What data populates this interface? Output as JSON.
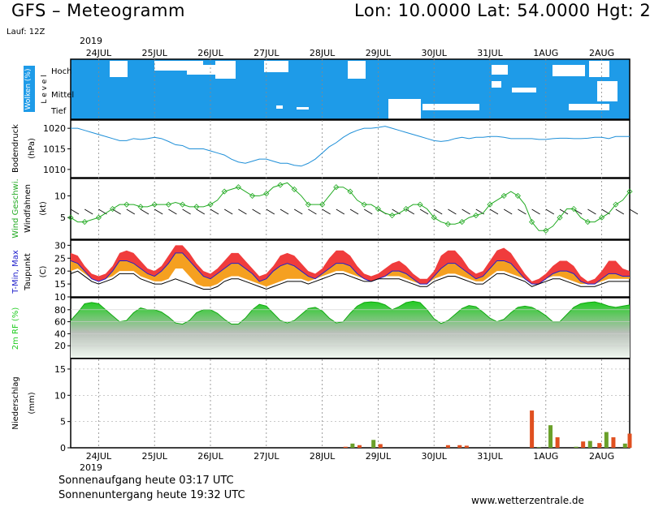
{
  "header": {
    "title": "GFS – Meteogramm",
    "coords": "Lon: 10.0000 Lat: 54.0000 Hgt: 2",
    "run": "Lauf: 12Z",
    "year": "2019"
  },
  "footer": {
    "sunrise": "Sonnenaufgang heute 03:17 UTC",
    "sunset": "Sonnenuntergang heute 19:32 UTC",
    "site": "www.wetterzentrale.de"
  },
  "colors": {
    "cloud_bg": "#1e9be8",
    "pressure": "#1e8fd8",
    "wind_line": "#22aa22",
    "tmax": "#f03c3c",
    "tmin": "#2020cc",
    "warm_fill": "#f5a020",
    "rh_fill": "#22cc22",
    "precip_green": "#6aa02a",
    "precip_red": "#e05020"
  },
  "chart_data": [
    {
      "type": "area",
      "panel": "clouds",
      "ylabel": "Wolken (%)",
      "ylabel2": "L e v e l",
      "levels": [
        "Hoch",
        "Mittel",
        "Tief"
      ],
      "x_labels": [
        "24JUL",
        "25JUL",
        "26JUL",
        "27JUL",
        "28JUL",
        "29JUL",
        "30JUL",
        "31JUL",
        "1AUG",
        "2AUG"
      ]
    },
    {
      "type": "line",
      "panel": "pressure",
      "ylabel": "Bodendruck",
      "unit": "(hPa)",
      "yticks": [
        1010,
        1015,
        1020
      ],
      "ylim": [
        1008,
        1022
      ],
      "x": [
        0,
        3,
        6,
        9,
        12,
        15,
        18,
        21,
        24,
        27,
        30,
        33,
        36,
        39,
        42,
        45,
        48,
        51,
        54,
        57,
        60,
        63,
        66,
        69,
        72,
        75,
        78,
        81,
        84,
        87,
        90,
        93,
        96,
        99,
        102,
        105,
        108,
        111,
        114,
        117,
        120,
        123,
        126,
        129,
        132,
        135,
        138,
        141,
        144,
        147,
        150,
        153,
        156,
        159,
        162,
        165,
        168,
        171,
        174,
        177,
        180,
        183,
        186,
        189,
        192,
        195,
        198,
        201,
        204,
        207,
        210,
        213,
        216,
        219,
        222,
        225,
        228,
        231,
        234,
        237,
        240
      ],
      "values": [
        1020,
        1020,
        1019.5,
        1019,
        1018.5,
        1018,
        1017.5,
        1017,
        1017,
        1017.5,
        1017.3,
        1017.5,
        1017.8,
        1017.5,
        1016.8,
        1016,
        1015.8,
        1015,
        1015,
        1015,
        1014.5,
        1014,
        1013.5,
        1012.5,
        1011.8,
        1011.5,
        1012,
        1012.5,
        1012.5,
        1012,
        1011.5,
        1011.5,
        1011,
        1010.8,
        1011.5,
        1012.5,
        1014,
        1015.5,
        1016.5,
        1017.8,
        1018.8,
        1019.5,
        1020,
        1020,
        1020.2,
        1020.5,
        1020,
        1019.5,
        1019,
        1018.5,
        1018,
        1017.5,
        1017,
        1016.8,
        1017,
        1017.5,
        1017.8,
        1017.5,
        1017.8,
        1017.8,
        1018,
        1018,
        1017.8,
        1017.5,
        1017.5,
        1017.5,
        1017.5,
        1017.3,
        1017.3,
        1017.5,
        1017.6,
        1017.6,
        1017.5,
        1017.5,
        1017.6,
        1017.8,
        1017.8,
        1017.5,
        1018,
        1018,
        1018
      ]
    },
    {
      "type": "line",
      "panel": "wind",
      "ylabel": "Wind Geschwi.",
      "ylabel2": "Windfahnen",
      "unit": "(kt)",
      "yticks": [
        5,
        10
      ],
      "ylim": [
        0,
        14
      ],
      "x": [
        0,
        3,
        6,
        9,
        12,
        15,
        18,
        21,
        24,
        27,
        30,
        33,
        36,
        39,
        42,
        45,
        48,
        51,
        54,
        57,
        60,
        63,
        66,
        69,
        72,
        75,
        78,
        81,
        84,
        87,
        90,
        93,
        96,
        99,
        102,
        105,
        108,
        111,
        114,
        117,
        120,
        123,
        126,
        129,
        132,
        135,
        138,
        141,
        144,
        147,
        150,
        153,
        156,
        159,
        162,
        165,
        168,
        171,
        174,
        177,
        180,
        183,
        186,
        189,
        192,
        195,
        198,
        201,
        204,
        207,
        210,
        213,
        216,
        219,
        222,
        225,
        228,
        231,
        234,
        237,
        240
      ],
      "values": [
        5,
        4,
        4,
        4.5,
        5,
        6,
        7,
        8,
        8,
        8,
        7.5,
        7.5,
        8,
        8,
        8,
        8.5,
        8,
        7.5,
        7.5,
        7.5,
        8,
        9,
        11,
        11.5,
        12,
        11,
        10,
        10,
        10.5,
        12,
        12.5,
        13,
        11.5,
        10,
        8,
        8,
        8,
        10,
        12,
        12,
        11,
        9,
        8,
        8,
        7,
        6,
        5.5,
        6,
        7,
        8,
        8,
        7,
        5,
        4,
        3.5,
        3.5,
        4,
        5,
        5.5,
        6,
        8,
        9,
        10,
        11,
        10,
        8,
        4,
        2,
        2,
        3,
        5,
        7,
        7,
        5,
        4,
        4,
        5,
        6,
        8,
        9,
        11
      ]
    },
    {
      "type": "line",
      "panel": "temperature",
      "ylabel": "T-Min, Max",
      "ylabel2": "Taupunkt",
      "unit": "(C)",
      "yticks": [
        10,
        15,
        20,
        25,
        30
      ],
      "ylim": [
        10,
        32
      ],
      "x": [
        0,
        3,
        6,
        9,
        12,
        15,
        18,
        21,
        24,
        27,
        30,
        33,
        36,
        39,
        42,
        45,
        48,
        51,
        54,
        57,
        60,
        63,
        66,
        69,
        72,
        75,
        78,
        81,
        84,
        87,
        90,
        93,
        96,
        99,
        102,
        105,
        108,
        111,
        114,
        117,
        120,
        123,
        126,
        129,
        132,
        135,
        138,
        141,
        144,
        147,
        150,
        153,
        156,
        159,
        162,
        165,
        168,
        171,
        174,
        177,
        180,
        183,
        186,
        189,
        192,
        195,
        198,
        201,
        204,
        207,
        210,
        213,
        216,
        219,
        222,
        225,
        228,
        231,
        234,
        237,
        240
      ],
      "series": [
        {
          "name": "Max",
          "values": [
            27,
            26,
            22,
            19,
            18,
            19,
            22,
            27,
            28,
            27,
            24,
            21,
            20,
            22,
            26,
            30,
            30,
            27,
            23,
            20,
            19,
            21,
            24,
            27,
            27,
            24,
            21,
            18,
            19,
            22,
            26,
            27,
            26,
            23,
            20,
            19,
            21,
            25,
            28,
            28,
            26,
            22,
            19,
            18,
            19,
            21,
            23,
            24,
            22,
            19,
            17,
            17,
            20,
            26,
            28,
            28,
            25,
            21,
            19,
            20,
            24,
            28,
            29,
            27,
            23,
            19,
            16,
            17,
            19,
            22,
            24,
            24,
            22,
            18,
            16,
            17,
            20,
            24,
            24,
            21,
            20
          ]
        },
        {
          "name": "Min",
          "values": [
            24,
            23,
            20,
            17,
            16,
            17,
            20,
            24,
            24,
            23,
            21,
            19,
            18,
            20,
            23,
            27,
            27,
            24,
            21,
            18,
            17,
            19,
            21,
            23,
            23,
            21,
            19,
            16,
            17,
            20,
            22,
            23,
            22,
            20,
            18,
            17,
            19,
            21,
            23,
            23,
            22,
            19,
            17,
            16,
            17,
            18,
            20,
            20,
            19,
            17,
            15,
            15,
            18,
            21,
            23,
            23,
            21,
            19,
            17,
            18,
            21,
            24,
            24,
            23,
            20,
            17,
            15,
            15,
            17,
            19,
            20,
            20,
            19,
            16,
            15,
            15,
            17,
            19,
            19,
            18,
            18
          ]
        },
        {
          "name": "Taupunkt",
          "values": [
            19,
            20,
            18,
            16,
            15,
            16,
            17,
            19,
            19,
            19,
            17,
            16,
            15,
            15,
            16,
            17,
            16,
            15,
            14,
            13,
            13,
            14,
            16,
            17,
            17,
            16,
            15,
            14,
            13,
            14,
            15,
            16,
            16,
            16,
            15,
            16,
            17,
            18,
            19,
            19,
            18,
            17,
            16,
            16,
            17,
            17,
            17,
            17,
            16,
            15,
            14,
            14,
            16,
            17,
            18,
            18,
            17,
            16,
            15,
            15,
            17,
            19,
            19,
            18,
            17,
            16,
            14,
            15,
            16,
            17,
            17,
            16,
            15,
            14,
            14,
            14,
            15,
            16,
            16,
            16,
            16
          ]
        }
      ]
    },
    {
      "type": "area",
      "panel": "humidity",
      "ylabel": "2m RF (%)",
      "yticks": [
        20,
        40,
        60,
        80
      ],
      "ylim": [
        0,
        100
      ],
      "x": [
        0,
        3,
        6,
        9,
        12,
        15,
        18,
        21,
        24,
        27,
        30,
        33,
        36,
        39,
        42,
        45,
        48,
        51,
        54,
        57,
        60,
        63,
        66,
        69,
        72,
        75,
        78,
        81,
        84,
        87,
        90,
        93,
        96,
        99,
        102,
        105,
        108,
        111,
        114,
        117,
        120,
        123,
        126,
        129,
        132,
        135,
        138,
        141,
        144,
        147,
        150,
        153,
        156,
        159,
        162,
        165,
        168,
        171,
        174,
        177,
        180,
        183,
        186,
        189,
        192,
        195,
        198,
        201,
        204,
        207,
        210,
        213,
        216,
        219,
        222,
        225,
        228,
        231,
        234,
        237,
        240
      ],
      "values": [
        62,
        75,
        90,
        92,
        90,
        80,
        70,
        60,
        62,
        75,
        83,
        80,
        80,
        76,
        68,
        58,
        56,
        62,
        75,
        80,
        80,
        74,
        64,
        56,
        56,
        66,
        80,
        89,
        86,
        74,
        62,
        58,
        62,
        72,
        82,
        84,
        78,
        66,
        58,
        60,
        74,
        86,
        92,
        93,
        92,
        88,
        80,
        85,
        92,
        94,
        92,
        80,
        65,
        57,
        62,
        72,
        82,
        87,
        85,
        76,
        66,
        60,
        64,
        75,
        84,
        86,
        84,
        78,
        70,
        60,
        60,
        72,
        84,
        90,
        92,
        93,
        90,
        86,
        84,
        86,
        88
      ]
    },
    {
      "type": "bar",
      "panel": "precipitation",
      "ylabel": "Niederschlag",
      "unit": "(mm)",
      "yticks": [
        0,
        5,
        10,
        15
      ],
      "ylim": [
        0,
        17
      ],
      "series": [
        {
          "color": "green",
          "x": [
            121,
            130,
            201,
            206,
            217,
            223,
            230,
            238
          ],
          "values": [
            0.8,
            1.5,
            0.1,
            4.3,
            0.2,
            1.3,
            3.0,
            0.8
          ]
        },
        {
          "color": "red",
          "x": [
            118,
            124,
            133,
            162,
            167,
            170,
            198,
            209,
            220,
            227,
            233,
            240
          ],
          "values": [
            0.2,
            0.5,
            0.7,
            0.5,
            0.5,
            0.4,
            7.1,
            2.0,
            1.2,
            0.9,
            2.0,
            2.7
          ]
        }
      ]
    }
  ]
}
